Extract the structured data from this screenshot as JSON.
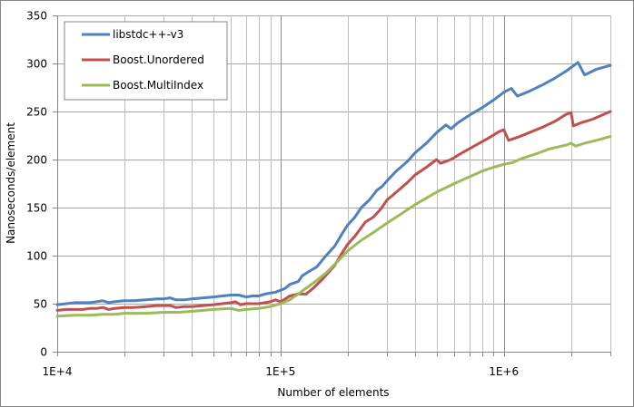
{
  "chart_data": {
    "type": "line",
    "title": "",
    "xlabel": "Number of elements",
    "ylabel": "Nanoseconds/element",
    "xscale": "log",
    "xlim": [
      10000,
      3000000
    ],
    "ylim": [
      0,
      350
    ],
    "x_ticks": [
      {
        "value": 10000,
        "label": "1E+4"
      },
      {
        "value": 100000,
        "label": "1E+5"
      },
      {
        "value": 1000000,
        "label": "1E+6"
      }
    ],
    "y_ticks": [
      0,
      50,
      100,
      150,
      200,
      250,
      300,
      350
    ],
    "grid": true,
    "legend_position": "top-left inside",
    "series": [
      {
        "name": "libstdc++-v3",
        "color": "#4F81BD",
        "points": [
          [
            10000,
            49
          ],
          [
            11000,
            50
          ],
          [
            12000,
            51
          ],
          [
            13000,
            51
          ],
          [
            14000,
            51
          ],
          [
            15000,
            52
          ],
          [
            16000,
            53
          ],
          [
            17000,
            51
          ],
          [
            18000,
            52
          ],
          [
            20000,
            53
          ],
          [
            22000,
            53
          ],
          [
            25000,
            54
          ],
          [
            28000,
            55
          ],
          [
            30000,
            55
          ],
          [
            32000,
            56
          ],
          [
            34000,
            54
          ],
          [
            37000,
            54
          ],
          [
            40000,
            55
          ],
          [
            45000,
            56
          ],
          [
            50000,
            57
          ],
          [
            55000,
            58
          ],
          [
            60000,
            59
          ],
          [
            65000,
            59
          ],
          [
            70000,
            57
          ],
          [
            75000,
            58
          ],
          [
            80000,
            58
          ],
          [
            85000,
            60
          ],
          [
            90000,
            61
          ],
          [
            95000,
            62
          ],
          [
            100000,
            64
          ],
          [
            105000,
            66
          ],
          [
            110000,
            70
          ],
          [
            120000,
            73
          ],
          [
            125000,
            79
          ],
          [
            135000,
            84
          ],
          [
            145000,
            88
          ],
          [
            160000,
            100
          ],
          [
            175000,
            110
          ],
          [
            190000,
            124
          ],
          [
            200000,
            132
          ],
          [
            215000,
            140
          ],
          [
            230000,
            150
          ],
          [
            250000,
            158
          ],
          [
            270000,
            168
          ],
          [
            285000,
            172
          ],
          [
            300000,
            178
          ],
          [
            330000,
            188
          ],
          [
            370000,
            198
          ],
          [
            400000,
            207
          ],
          [
            450000,
            217
          ],
          [
            500000,
            228
          ],
          [
            550000,
            236
          ],
          [
            580000,
            232
          ],
          [
            620000,
            238
          ],
          [
            700000,
            246
          ],
          [
            800000,
            254
          ],
          [
            900000,
            262
          ],
          [
            1000000,
            270
          ],
          [
            1080000,
            274
          ],
          [
            1150000,
            266
          ],
          [
            1300000,
            271
          ],
          [
            1500000,
            278
          ],
          [
            1700000,
            285
          ],
          [
            1900000,
            292
          ],
          [
            2150000,
            301
          ],
          [
            2300000,
            288
          ],
          [
            2600000,
            294
          ],
          [
            3000000,
            298
          ]
        ]
      },
      {
        "name": "Boost.Unordered",
        "color": "#C0504D",
        "points": [
          [
            10000,
            43
          ],
          [
            11000,
            44
          ],
          [
            12000,
            44
          ],
          [
            13000,
            44
          ],
          [
            14000,
            45
          ],
          [
            15000,
            45
          ],
          [
            16000,
            46
          ],
          [
            17000,
            44
          ],
          [
            18000,
            45
          ],
          [
            20000,
            46
          ],
          [
            22000,
            46
          ],
          [
            25000,
            47
          ],
          [
            28000,
            48
          ],
          [
            30000,
            48
          ],
          [
            32000,
            48
          ],
          [
            34000,
            46
          ],
          [
            37000,
            47
          ],
          [
            40000,
            47
          ],
          [
            45000,
            48
          ],
          [
            50000,
            49
          ],
          [
            55000,
            50
          ],
          [
            60000,
            51
          ],
          [
            63000,
            52
          ],
          [
            66000,
            49
          ],
          [
            70000,
            50
          ],
          [
            80000,
            50
          ],
          [
            90000,
            52
          ],
          [
            95000,
            54
          ],
          [
            100000,
            52
          ],
          [
            105000,
            55
          ],
          [
            110000,
            58
          ],
          [
            120000,
            60
          ],
          [
            130000,
            60
          ],
          [
            140000,
            66
          ],
          [
            155000,
            76
          ],
          [
            175000,
            90
          ],
          [
            190000,
            104
          ],
          [
            200000,
            112
          ],
          [
            215000,
            120
          ],
          [
            240000,
            135
          ],
          [
            260000,
            140
          ],
          [
            280000,
            148
          ],
          [
            300000,
            158
          ],
          [
            330000,
            166
          ],
          [
            370000,
            176
          ],
          [
            400000,
            184
          ],
          [
            450000,
            192
          ],
          [
            500000,
            200
          ],
          [
            520000,
            196
          ],
          [
            580000,
            200
          ],
          [
            650000,
            207
          ],
          [
            750000,
            215
          ],
          [
            850000,
            222
          ],
          [
            950000,
            229
          ],
          [
            1000000,
            231
          ],
          [
            1050000,
            220
          ],
          [
            1150000,
            223
          ],
          [
            1300000,
            228
          ],
          [
            1500000,
            234
          ],
          [
            1700000,
            240
          ],
          [
            1900000,
            247
          ],
          [
            2000000,
            249
          ],
          [
            2050000,
            235
          ],
          [
            2200000,
            238
          ],
          [
            2500000,
            242
          ],
          [
            3000000,
            250
          ]
        ]
      },
      {
        "name": "Boost.MultiIndex",
        "color": "#9BBB59",
        "points": [
          [
            10000,
            37
          ],
          [
            12000,
            38
          ],
          [
            14000,
            38
          ],
          [
            16000,
            39
          ],
          [
            18000,
            39
          ],
          [
            20000,
            40
          ],
          [
            25000,
            40
          ],
          [
            30000,
            41
          ],
          [
            35000,
            41
          ],
          [
            40000,
            42
          ],
          [
            50000,
            44
          ],
          [
            60000,
            45
          ],
          [
            65000,
            43
          ],
          [
            70000,
            44
          ],
          [
            80000,
            45
          ],
          [
            90000,
            47
          ],
          [
            100000,
            50
          ],
          [
            110000,
            54
          ],
          [
            120000,
            60
          ],
          [
            130000,
            66
          ],
          [
            145000,
            74
          ],
          [
            160000,
            82
          ],
          [
            180000,
            94
          ],
          [
            200000,
            105
          ],
          [
            230000,
            116
          ],
          [
            260000,
            124
          ],
          [
            300000,
            134
          ],
          [
            350000,
            144
          ],
          [
            400000,
            153
          ],
          [
            450000,
            160
          ],
          [
            500000,
            166
          ],
          [
            600000,
            175
          ],
          [
            700000,
            182
          ],
          [
            800000,
            188
          ],
          [
            900000,
            192
          ],
          [
            1000000,
            195
          ],
          [
            1100000,
            197
          ],
          [
            1200000,
            201
          ],
          [
            1400000,
            206
          ],
          [
            1600000,
            211
          ],
          [
            1900000,
            215
          ],
          [
            2000000,
            217
          ],
          [
            2100000,
            214
          ],
          [
            2300000,
            217
          ],
          [
            2600000,
            220
          ],
          [
            3000000,
            224
          ]
        ]
      }
    ]
  },
  "legend": {
    "items": [
      {
        "label": "libstdc++-v3",
        "color": "#4F81BD"
      },
      {
        "label": "Boost.Unordered",
        "color": "#C0504D"
      },
      {
        "label": "Boost.MultiIndex",
        "color": "#9BBB59"
      }
    ]
  },
  "axes": {
    "x_title": "Number of elements",
    "y_title": "Nanoseconds/element"
  }
}
